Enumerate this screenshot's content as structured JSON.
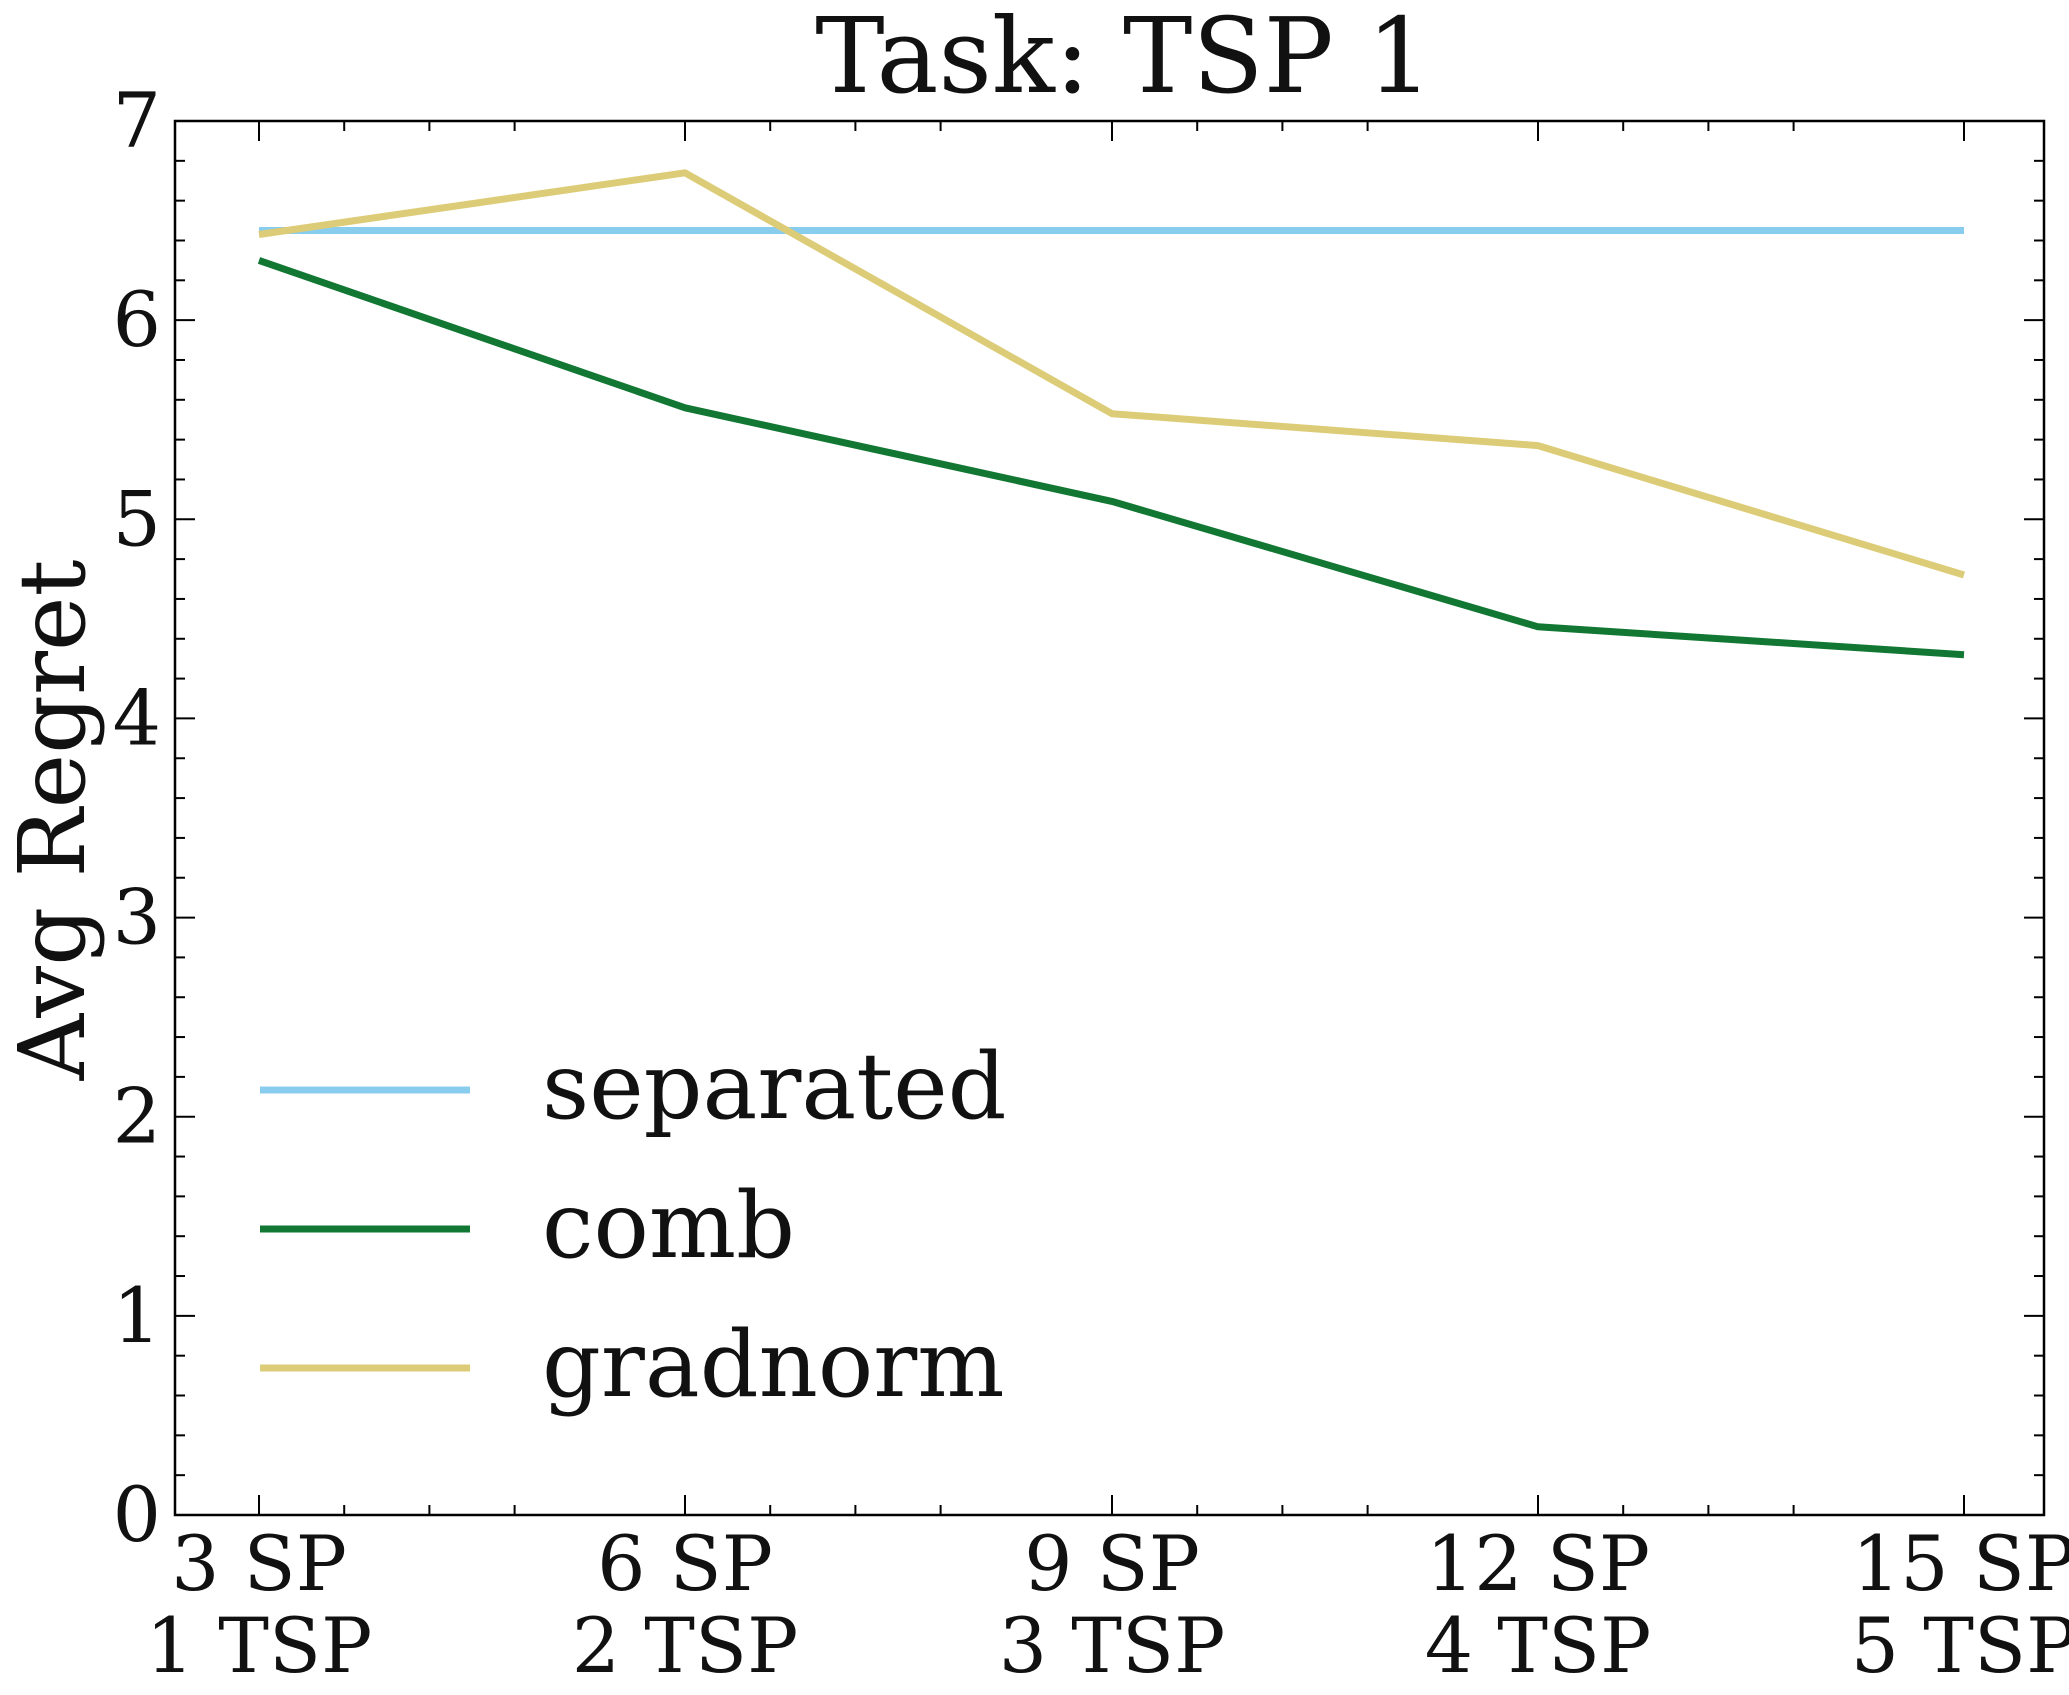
{
  "chart_data": {
    "type": "line",
    "title": "Task: TSP 1",
    "xlabel": "",
    "ylabel": "Avg Regret",
    "categories": [
      [
        "3 SP",
        "1 TSP"
      ],
      [
        "6 SP",
        "2 TSP"
      ],
      [
        "9 SP",
        "3 TSP"
      ],
      [
        "12 SP",
        "4 TSP"
      ],
      [
        "15 SP",
        "5 TSP"
      ]
    ],
    "ylim": [
      0,
      7
    ],
    "yticks": [
      "0",
      "1",
      "2",
      "3",
      "4",
      "5",
      "6",
      "7"
    ],
    "grid": false,
    "legend_position": "lower-left",
    "series": [
      {
        "name": "separated",
        "color": "#88ccee",
        "values": [
          6.45,
          6.45,
          6.45,
          6.45,
          6.45
        ]
      },
      {
        "name": "comb",
        "color": "#117733",
        "values": [
          6.3,
          5.56,
          5.09,
          4.46,
          4.32
        ]
      },
      {
        "name": "gradnorm",
        "color": "#ddcc77",
        "values": [
          6.43,
          6.74,
          5.53,
          5.37,
          4.72
        ]
      }
    ]
  }
}
